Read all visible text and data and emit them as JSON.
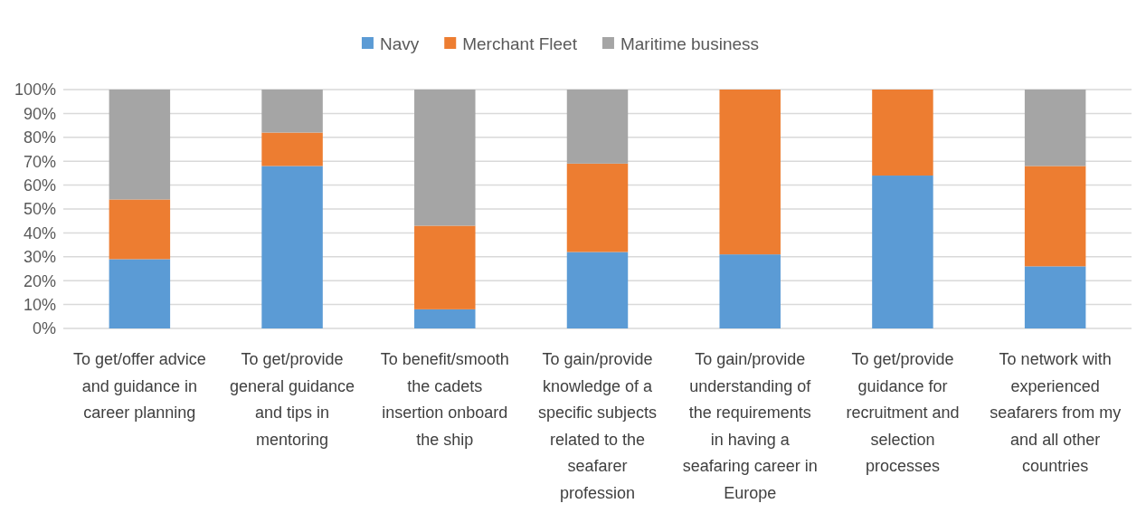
{
  "chart_data": {
    "type": "bar",
    "stacked": true,
    "categories": [
      "To get/offer advice and guidance in career planning",
      "To get/provide general guidance and tips in mentoring",
      "To benefit/smooth the cadets insertion onboard the ship",
      "To gain/provide knowledge of a specific subjects related to the seafarer profession",
      "To gain/provide understanding of the requirements in having a seafaring career in Europe",
      "To get/provide guidance for recruitment and selection processes",
      "To network with experienced seafarers from my and all other countries"
    ],
    "series": [
      {
        "name": "Navy",
        "color": "#5b9bd5",
        "values": [
          29,
          68,
          8,
          32,
          31,
          64,
          26
        ]
      },
      {
        "name": "Merchant Fleet",
        "color": "#ed7d31",
        "values": [
          25,
          14,
          35,
          37,
          69,
          36,
          42
        ]
      },
      {
        "name": "Maritime business",
        "color": "#a5a5a5",
        "values": [
          46,
          18,
          57,
          31,
          0,
          0,
          32
        ]
      }
    ],
    "ylim": [
      0,
      100
    ],
    "yticks": [
      {
        "value": 0,
        "label": "0%"
      },
      {
        "value": 10,
        "label": "10%"
      },
      {
        "value": 20,
        "label": "20%"
      },
      {
        "value": 30,
        "label": "30%"
      },
      {
        "value": 40,
        "label": "40%"
      },
      {
        "value": 50,
        "label": "50%"
      },
      {
        "value": 60,
        "label": "60%"
      },
      {
        "value": 70,
        "label": "70%"
      },
      {
        "value": 80,
        "label": "80%"
      },
      {
        "value": 90,
        "label": "90%"
      },
      {
        "value": 100,
        "label": "100%"
      }
    ],
    "grid": "y",
    "legend": "top"
  }
}
